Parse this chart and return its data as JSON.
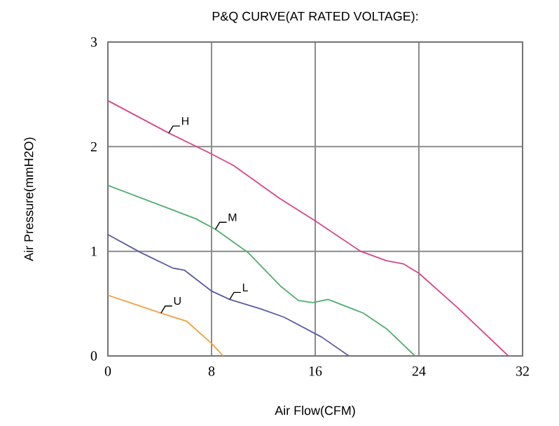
{
  "chart_data": {
    "type": "line",
    "title": "P&Q CURVE(AT RATED VOLTAGE):",
    "xlabel": "Air Flow(CFM)",
    "ylabel": "Air Pressure(mmH2O)",
    "xlim": [
      0,
      32
    ],
    "ylim": [
      0,
      3
    ],
    "xticks": [
      0,
      8,
      16,
      24,
      32
    ],
    "yticks": [
      0,
      1,
      2,
      3
    ],
    "grid": true,
    "legend": false,
    "marker": "none",
    "line_style": "solid",
    "series": [
      {
        "name": "H",
        "color": "#d6458c",
        "x": [
          0,
          4.7,
          8,
          9.7,
          13.2,
          16,
          19.5,
          21.5,
          22.8,
          24,
          27,
          30.9
        ],
        "values": [
          2.44,
          2.13,
          1.93,
          1.82,
          1.51,
          1.29,
          1.0,
          0.91,
          0.88,
          0.79,
          0.46,
          0
        ]
      },
      {
        "name": "M",
        "color": "#4fae6e",
        "x": [
          0,
          6.8,
          8.3,
          10.8,
          13.3,
          14.7,
          15.8,
          17,
          19.7,
          21.5,
          23.7
        ],
        "values": [
          1.63,
          1.31,
          1.21,
          0.99,
          0.67,
          0.53,
          0.51,
          0.54,
          0.41,
          0.26,
          0
        ]
      },
      {
        "name": "L",
        "color": "#5b5ba3",
        "x": [
          0,
          2.5,
          5,
          5.9,
          8,
          9.4,
          11.8,
          13.6,
          16.5,
          18.6
        ],
        "values": [
          1.16,
          0.99,
          0.84,
          0.82,
          0.62,
          0.54,
          0.45,
          0.37,
          0.18,
          0
        ]
      },
      {
        "name": "U",
        "color": "#f0a040",
        "x": [
          0,
          4.1,
          6.1,
          8,
          8.9
        ],
        "values": [
          0.58,
          0.41,
          0.33,
          0.12,
          0
        ]
      }
    ]
  }
}
